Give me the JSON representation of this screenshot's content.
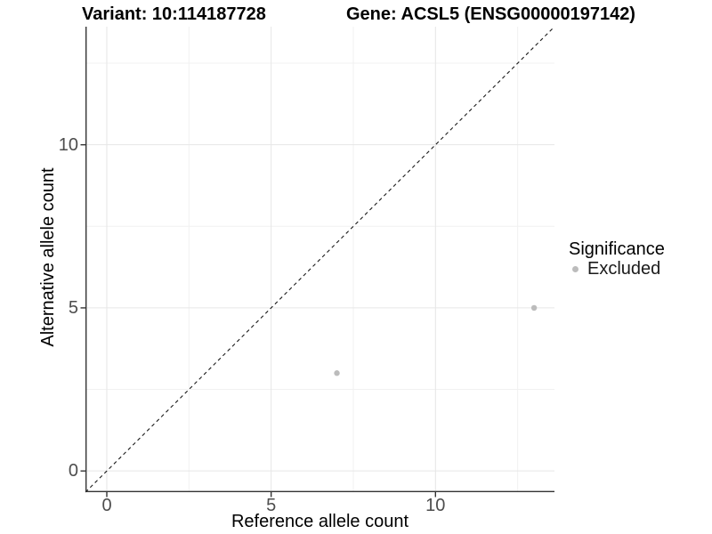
{
  "chart_data": {
    "type": "scatter",
    "titles": {
      "variant": "Variant: 10:114187728",
      "gene": "Gene: ACSL5 (ENSG00000197142)"
    },
    "xlabel": "Reference allele count",
    "ylabel": "Alternative allele count",
    "xlim": [
      -0.65,
      13.62
    ],
    "ylim": [
      -0.65,
      13.62
    ],
    "x_ticks": [
      0,
      5,
      10
    ],
    "y_ticks": [
      0,
      5,
      10
    ],
    "x_minor_ticks": [
      2.5,
      7.5,
      12.5
    ],
    "y_minor_ticks": [
      2.5,
      7.5,
      12.5
    ],
    "grid": true,
    "legend_position": "right-center",
    "legend": {
      "title": "Significance",
      "items": [
        {
          "label": "Excluded",
          "color": "#bcbcbc"
        }
      ]
    },
    "series": [
      {
        "name": "Excluded",
        "color": "#bcbcbc",
        "marker_size": 3.2,
        "points": [
          {
            "x": 7,
            "y": 3
          },
          {
            "x": 13,
            "y": 5
          }
        ]
      }
    ],
    "reference_line": {
      "type": "identity",
      "equation": "y = x",
      "style": "dashed",
      "color": "#1a1a1a"
    }
  },
  "colors": {
    "background": "#ffffff",
    "grid_major": "#e6e6e6",
    "grid_minor": "#f1f1f1",
    "axis_line": "#333333",
    "tick_mark": "#333333",
    "tick_text": "#4d4d4d",
    "title_text": "#000000"
  }
}
